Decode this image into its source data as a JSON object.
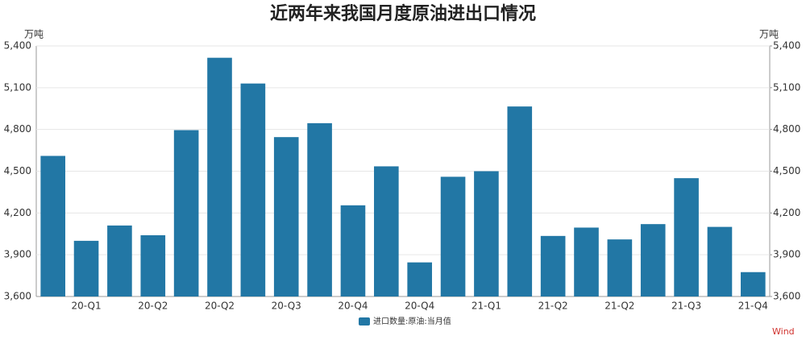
{
  "chart_data": {
    "type": "bar",
    "title": "近两年来我国月度原油进出口情况",
    "y_label": "万吨",
    "y2_label": "万吨",
    "source": "Wind",
    "categories": [
      null,
      "20-Q1",
      null,
      "20-Q2",
      null,
      "20-Q2",
      null,
      "20-Q3",
      null,
      "20-Q4",
      null,
      "20-Q4",
      null,
      "21-Q1",
      null,
      "21-Q2",
      null,
      "21-Q2",
      null,
      "21-Q3",
      null,
      "21-Q4"
    ],
    "series": [
      {
        "name": "进口数量:原油:当月值",
        "color": "#2277a5",
        "values": [
          4610,
          4000,
          4110,
          4040,
          4795,
          5315,
          5130,
          4745,
          4845,
          4255,
          4535,
          3845,
          4460,
          4500,
          4965,
          4035,
          4095,
          4010,
          4120,
          4450,
          4100,
          3775
        ]
      }
    ],
    "ylim": [
      3600,
      5400
    ],
    "yticks": [
      {
        "value": 3600,
        "label": "3,600"
      },
      {
        "value": 3900,
        "label": "3,900"
      },
      {
        "value": 4200,
        "label": "4,200"
      },
      {
        "value": 4500,
        "label": "4,500"
      },
      {
        "value": 4800,
        "label": "4,800"
      },
      {
        "value": 5100,
        "label": "5,100"
      },
      {
        "value": 5400,
        "label": "5,400"
      }
    ],
    "y2lim": [
      3600,
      5400
    ],
    "y2ticks": [
      {
        "value": 3600,
        "label": "3,600"
      },
      {
        "value": 3900,
        "label": "3,900"
      },
      {
        "value": 4200,
        "label": "4,200"
      },
      {
        "value": 4500,
        "label": "4,500"
      },
      {
        "value": 4800,
        "label": "4,800"
      },
      {
        "value": 5100,
        "label": "5,100"
      },
      {
        "value": 5400,
        "label": "5,400"
      }
    ],
    "grid": true,
    "legend": "bottom"
  }
}
